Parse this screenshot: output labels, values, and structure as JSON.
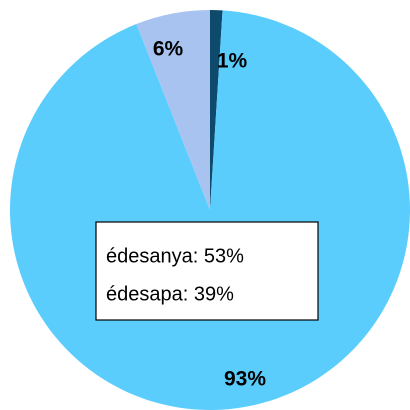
{
  "chart_data": {
    "type": "pie",
    "values": [
      1,
      93,
      6
    ],
    "value_labels": [
      "1%",
      "93%",
      "6%"
    ],
    "colors": [
      "#0d4a6b",
      "#5bcdfc",
      "#a9c3f1"
    ],
    "annotations": [
      "édesanya: 53%",
      "édesapa: 39%"
    ]
  }
}
